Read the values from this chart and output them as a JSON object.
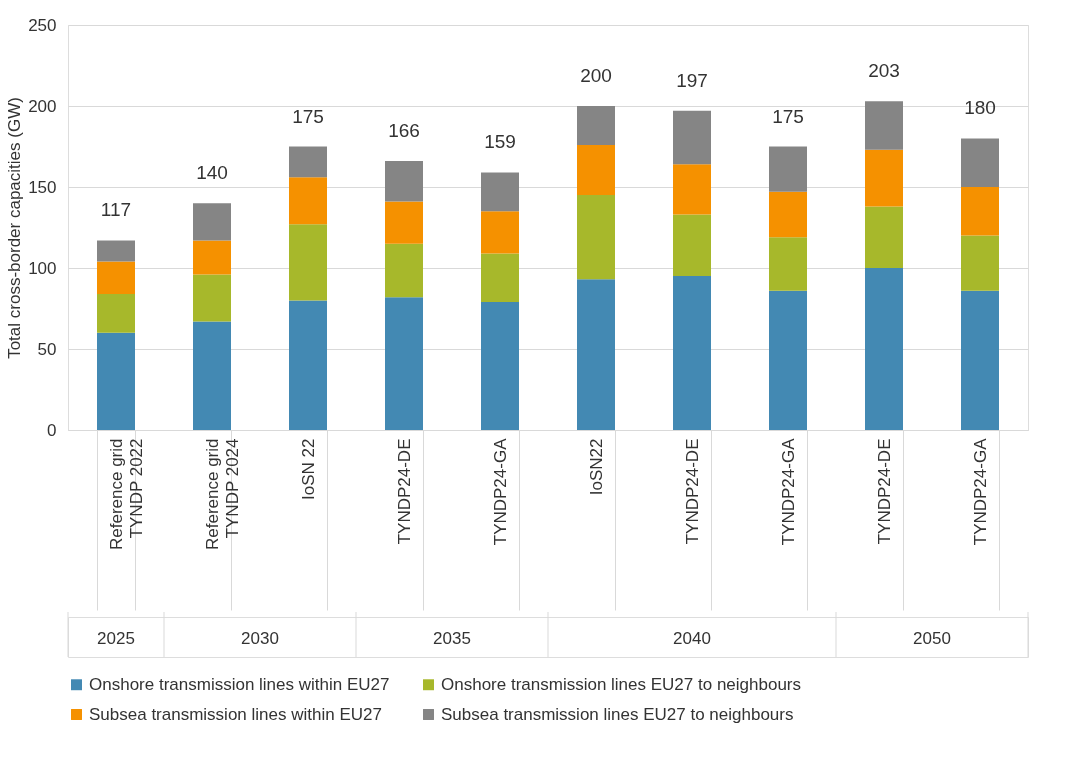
{
  "chart_data": {
    "type": "bar",
    "stacked": true,
    "ylabel": "Total cross-border capacities (GW)",
    "categories": [
      "Reference grid\nTYNDP 2022",
      "Reference grid\nTYNDP 2024",
      "IoSN 22",
      "TYNDP24-DE",
      "TYNDP24-GA",
      "IoSN22",
      "TYNDP24-DE",
      "TYNDP24-GA",
      "TYNDP24-DE",
      "TYNDP24-GA"
    ],
    "series": [
      {
        "name": "Onshore transmission lines within EU27",
        "color": "#4389b3",
        "values": [
          60,
          67,
          80,
          82,
          79,
          93,
          95,
          86,
          100,
          86
        ]
      },
      {
        "name": "Onshore transmission lines EU27 to neighbours",
        "color": "#a7b82b",
        "values": [
          24,
          29,
          47,
          33,
          30,
          52,
          38,
          33,
          38,
          34
        ]
      },
      {
        "name": "Subsea transmission lines within EU27",
        "color": "#f59100",
        "values": [
          20,
          21,
          29,
          26,
          26,
          31,
          31,
          28,
          35,
          30
        ]
      },
      {
        "name": "Subsea transmission lines EU27 to neighbours",
        "color": "#858585",
        "values": [
          13,
          23,
          19,
          25,
          24,
          24,
          33,
          28,
          30,
          30
        ]
      }
    ],
    "totals": [
      "117",
      "140",
      "175",
      "166",
      "159",
      "200",
      "197",
      "175",
      "203",
      "180"
    ],
    "annotations": [
      "2025",
      "2030",
      "2035",
      "2040",
      "2050"
    ],
    "ylim": [
      0,
      250
    ],
    "yticks": [
      0,
      50,
      100,
      150,
      200,
      250
    ],
    "grid": "y",
    "legend": "bottom"
  }
}
